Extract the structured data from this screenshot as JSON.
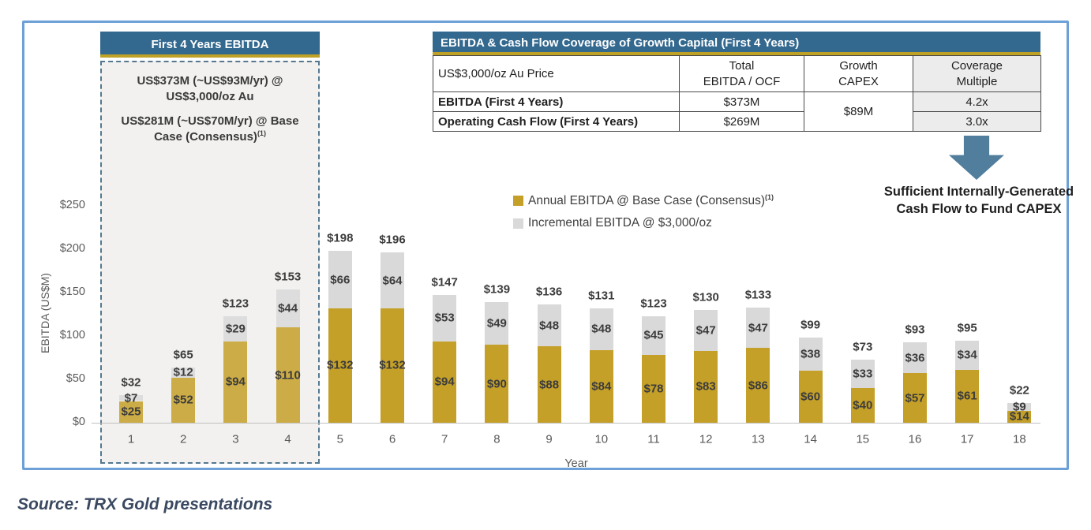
{
  "first4": {
    "title": "First 4 Years EBITDA",
    "stat1": "US$373M (~US$93M/yr) @ US$3,000/oz Au",
    "stat2": "US$281M (~US$70M/yr) @ Base Case (Consensus)",
    "stat2_footnote": "(1)"
  },
  "coverage_table": {
    "title": "EBITDA & Cash Flow Coverage of Growth Capital (First 4 Years)",
    "columns": [
      {
        "label": "US$3,000/oz Au Price"
      },
      {
        "line1": "Total",
        "line2": "EBITDA / OCF"
      },
      {
        "line1": "Growth",
        "line2": "CAPEX"
      },
      {
        "line1": "Coverage",
        "line2": "Multiple"
      }
    ],
    "rows": [
      {
        "label": "EBITDA (First 4 Years)",
        "total": "$373M",
        "multiple": "4.2x"
      },
      {
        "label": "Operating Cash Flow (First 4 Years)",
        "total": "$269M",
        "multiple": "3.0x"
      }
    ],
    "growth_capex": "$89M"
  },
  "callout": {
    "text": "Sufficient Internally-Generated Cash Flow to Fund CAPEX"
  },
  "legend": {
    "items": [
      {
        "label": "Annual EBITDA @ Base Case (Consensus)",
        "footnote": "(1)"
      },
      {
        "label": "Incremental EBITDA @ $3,000/oz",
        "footnote": ""
      }
    ]
  },
  "chart_data": {
    "type": "bar",
    "stacked": true,
    "title": "",
    "xlabel": "Year",
    "ylabel": "EBITDA (US$M)",
    "ylim": [
      0,
      250
    ],
    "y_ticks": [
      "$0",
      "$50",
      "$100",
      "$150",
      "$200",
      "$250"
    ],
    "grid": false,
    "legend_position": "inside-top-middle",
    "categories": [
      1,
      2,
      3,
      4,
      5,
      6,
      7,
      8,
      9,
      10,
      11,
      12,
      13,
      14,
      15,
      16,
      17,
      18
    ],
    "series": [
      {
        "name": "Annual EBITDA @ Base Case (Consensus)(1)",
        "color": "#C5A028",
        "values": [
          25,
          52,
          94,
          110,
          132,
          132,
          94,
          90,
          88,
          84,
          78,
          83,
          86,
          60,
          40,
          57,
          61,
          14
        ]
      },
      {
        "name": "Incremental EBITDA @ $3,000/oz",
        "color": "#D9D9D9",
        "values": [
          7,
          12,
          29,
          44,
          66,
          64,
          53,
          49,
          48,
          48,
          45,
          47,
          47,
          38,
          33,
          36,
          34,
          9
        ]
      }
    ],
    "totals": [
      32,
      65,
      123,
      153,
      198,
      196,
      147,
      139,
      136,
      131,
      123,
      130,
      133,
      99,
      73,
      93,
      95,
      22
    ],
    "highlight_region_years": [
      1,
      4
    ]
  },
  "source": {
    "text": "Source: TRX Gold presentations"
  },
  "colors": {
    "header_blue": "#33688F",
    "gold_accent": "#BFA126",
    "bar_gold": "#C5A028",
    "bar_gray": "#D9D9D9",
    "figure_border_blue": "#6CA0D6",
    "arrow_blue": "#527E9D",
    "axis_text": "#595959",
    "source_text": "#3A4961"
  }
}
